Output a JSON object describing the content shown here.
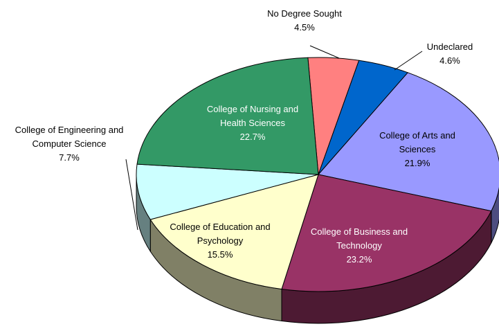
{
  "chart_data": {
    "type": "pie3d",
    "categories": [
      "No Degree Sought",
      "Undeclared",
      "College of Arts and Sciences",
      "College of Business and Technology",
      "College of Education and Psychology",
      "College of Engineering and Computer Science",
      "College of Nursing and Health Sciences"
    ],
    "values": [
      4.5,
      4.6,
      21.9,
      23.2,
      15.5,
      7.7,
      22.7
    ],
    "value_labels": [
      "4.5%",
      "4.6%",
      "21.9%",
      "23.2%",
      "15.5%",
      "7.7%",
      "22.7%"
    ],
    "colors": [
      "#ff8080",
      "#0066cc",
      "#9999ff",
      "#993366",
      "#ffffcc",
      "#ccffff",
      "#339966"
    ]
  }
}
